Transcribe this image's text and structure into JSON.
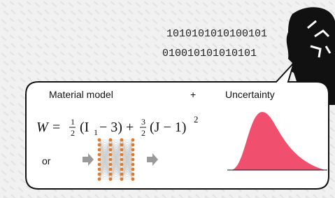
{
  "binary": {
    "line1": "1010101010100101",
    "line2": "010010101010101"
  },
  "bubble": {
    "left_title": "Material model",
    "plus": "+",
    "right_title": "Uncertainty",
    "formula": {
      "lhs": "W =",
      "frac1_num": "1",
      "frac1_den": "2",
      "term1": "(I",
      "sub1": "1",
      "term1_end": "− 3) +",
      "frac2_num": "3",
      "frac2_den": "2",
      "term2": "(J − 1)",
      "power": "2"
    },
    "or": "or"
  }
}
